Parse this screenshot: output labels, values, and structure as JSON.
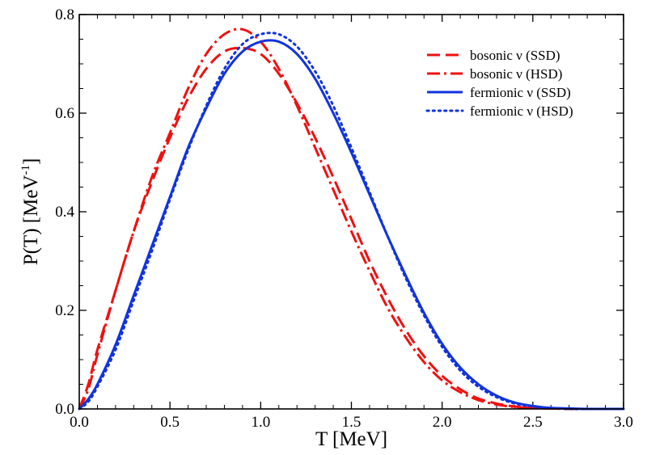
{
  "chart_data": {
    "type": "line",
    "title": "",
    "xlabel": "T [MeV]",
    "ylabel_main": "P(T) [MeV",
    "ylabel_sup": "-1",
    "ylabel_close": "]",
    "xlim": [
      0,
      3.0
    ],
    "ylim": [
      0,
      0.8
    ],
    "xticks": [
      0.0,
      0.5,
      1.0,
      1.5,
      2.0,
      2.5,
      3.0
    ],
    "xtick_labels": [
      "0.0",
      "0.5",
      "1.0",
      "1.5",
      "2.0",
      "2.5",
      "3.0"
    ],
    "yticks": [
      0.0,
      0.2,
      0.4,
      0.6,
      0.8
    ],
    "ytick_labels": [
      "0.0",
      "0.2",
      "0.4",
      "0.6",
      "0.8"
    ],
    "grid": false,
    "legend_position": "top-right",
    "series": [
      {
        "name": "bosonic ν (SSD)",
        "color": "#ee1111",
        "style": "dashed",
        "x": [
          0.0,
          0.05,
          0.1,
          0.2,
          0.3,
          0.4,
          0.5,
          0.6,
          0.7,
          0.8,
          0.9,
          1.0,
          1.1,
          1.2,
          1.3,
          1.4,
          1.5,
          1.6,
          1.7,
          1.8,
          1.9,
          2.0,
          2.1,
          2.2,
          2.3,
          2.4,
          2.5,
          2.6,
          2.7,
          2.8,
          3.0
        ],
        "y": [
          0.0,
          0.05,
          0.12,
          0.24,
          0.36,
          0.46,
          0.55,
          0.63,
          0.69,
          0.725,
          0.732,
          0.72,
          0.68,
          0.62,
          0.55,
          0.47,
          0.385,
          0.3,
          0.225,
          0.16,
          0.107,
          0.067,
          0.04,
          0.021,
          0.011,
          0.005,
          0.002,
          0.001,
          0.0,
          0.0,
          0.0
        ]
      },
      {
        "name": "bosonic ν (HSD)",
        "color": "#ee1111",
        "style": "dash-dot",
        "x": [
          0.0,
          0.05,
          0.1,
          0.2,
          0.3,
          0.4,
          0.5,
          0.6,
          0.7,
          0.8,
          0.9,
          1.0,
          1.1,
          1.2,
          1.3,
          1.4,
          1.5,
          1.6,
          1.7,
          1.8,
          1.9,
          2.0,
          2.1,
          2.2,
          2.3,
          2.4,
          2.5,
          2.6,
          2.7,
          2.8,
          3.0
        ],
        "y": [
          0.0,
          0.04,
          0.11,
          0.24,
          0.36,
          0.47,
          0.56,
          0.65,
          0.72,
          0.76,
          0.77,
          0.745,
          0.69,
          0.615,
          0.53,
          0.445,
          0.36,
          0.28,
          0.205,
          0.145,
          0.095,
          0.058,
          0.034,
          0.018,
          0.009,
          0.004,
          0.002,
          0.001,
          0.0,
          0.0,
          0.0
        ]
      },
      {
        "name": "fermionic ν (SSD)",
        "color": "#1133dd",
        "style": "solid",
        "x": [
          0.0,
          0.05,
          0.1,
          0.2,
          0.3,
          0.4,
          0.5,
          0.6,
          0.7,
          0.8,
          0.9,
          1.0,
          1.1,
          1.2,
          1.3,
          1.4,
          1.5,
          1.6,
          1.7,
          1.8,
          1.9,
          2.0,
          2.1,
          2.2,
          2.3,
          2.4,
          2.5,
          2.6,
          2.7,
          2.8,
          3.0
        ],
        "y": [
          0.0,
          0.02,
          0.05,
          0.13,
          0.23,
          0.33,
          0.43,
          0.53,
          0.61,
          0.68,
          0.725,
          0.745,
          0.745,
          0.72,
          0.67,
          0.6,
          0.52,
          0.435,
          0.35,
          0.27,
          0.195,
          0.132,
          0.084,
          0.05,
          0.027,
          0.013,
          0.006,
          0.002,
          0.001,
          0.0,
          0.0
        ]
      },
      {
        "name": "fermionic ν (HSD)",
        "color": "#1133dd",
        "style": "dotted",
        "x": [
          0.0,
          0.05,
          0.1,
          0.2,
          0.3,
          0.4,
          0.5,
          0.6,
          0.7,
          0.8,
          0.9,
          1.0,
          1.1,
          1.2,
          1.3,
          1.4,
          1.5,
          1.6,
          1.7,
          1.8,
          1.9,
          2.0,
          2.1,
          2.2,
          2.3,
          2.4,
          2.5,
          2.6,
          2.7,
          2.8,
          3.0
        ],
        "y": [
          0.0,
          0.015,
          0.045,
          0.12,
          0.22,
          0.32,
          0.425,
          0.525,
          0.615,
          0.69,
          0.74,
          0.76,
          0.76,
          0.735,
          0.685,
          0.615,
          0.53,
          0.44,
          0.35,
          0.265,
          0.19,
          0.126,
          0.078,
          0.045,
          0.024,
          0.011,
          0.005,
          0.002,
          0.0,
          0.0,
          0.0
        ]
      }
    ]
  }
}
